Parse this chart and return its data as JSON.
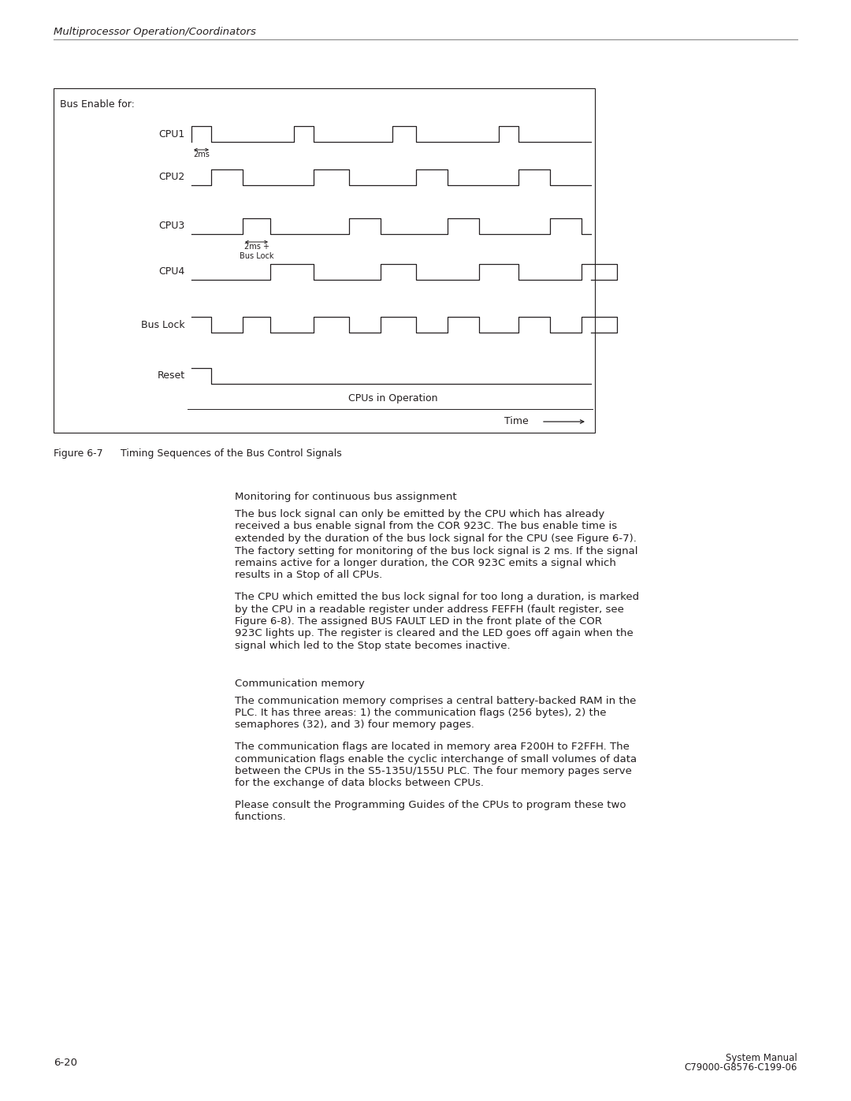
{
  "page_header": "Multiprocessor Operation/Coordinators",
  "figure_label": "Figure 6-7",
  "figure_caption": "Timing Sequences of the Bus Control Signals",
  "diagram": {
    "title": "Bus Enable for:",
    "signals": [
      "CPU1",
      "CPU2",
      "CPU3",
      "CPU4",
      "Bus Lock",
      "Reset"
    ],
    "annotation_2ms_cpu1": "2ms",
    "annotation_2ms_cpu3": "2ms +",
    "annotation_buslock": "Bus Lock",
    "annotation_cpus": "CPUs in Operation",
    "annotation_time": "Time"
  },
  "section1_title": "Monitoring for continuous bus assignment",
  "section1_para1": "The bus lock signal can only be emitted by the CPU which has already\nreceived a bus enable signal from the COR 923C. The bus enable time is\nextended by the duration of the bus lock signal for the CPU (see Figure 6-7).\nThe factory setting for monitoring of the bus lock signal is 2 ms. If the signal\nremains active for a longer duration, the COR 923C emits a signal which\nresults in a Stop of all CPUs.",
  "section1_para2": "The CPU which emitted the bus lock signal for too long a duration, is marked\nby the CPU in a readable register under address FEFFH (fault register, see\nFigure 6-8). The assigned BUS FAULT LED in the front plate of the COR\n923C lights up. The register is cleared and the LED goes off again when the\nsignal which led to the Stop state becomes inactive.",
  "section2_title": "Communication memory",
  "section2_para1": "The communication memory comprises a central battery-backed RAM in the\nPLC. It has three areas: 1) the communication flags (256 bytes), 2) the\nsemaphores (32), and 3) four memory pages.",
  "section2_para2": "The communication flags are located in memory area F200H to F2FFH. The\ncommunication flags enable the cyclic interchange of small volumes of data\nbetween the CPUs in the S5-135U/155U PLC. The four memory pages serve\nfor the exchange of data blocks between CPUs.",
  "section2_para3": "Please consult the Programming Guides of the CPUs to program these two\nfunctions.",
  "footer_left": "6-20",
  "footer_right_line1": "System Manual",
  "footer_right_line2": "C79000-G8576-C199-06",
  "bg_color": "#ffffff",
  "text_color": "#231f20",
  "line_color": "#231f20"
}
